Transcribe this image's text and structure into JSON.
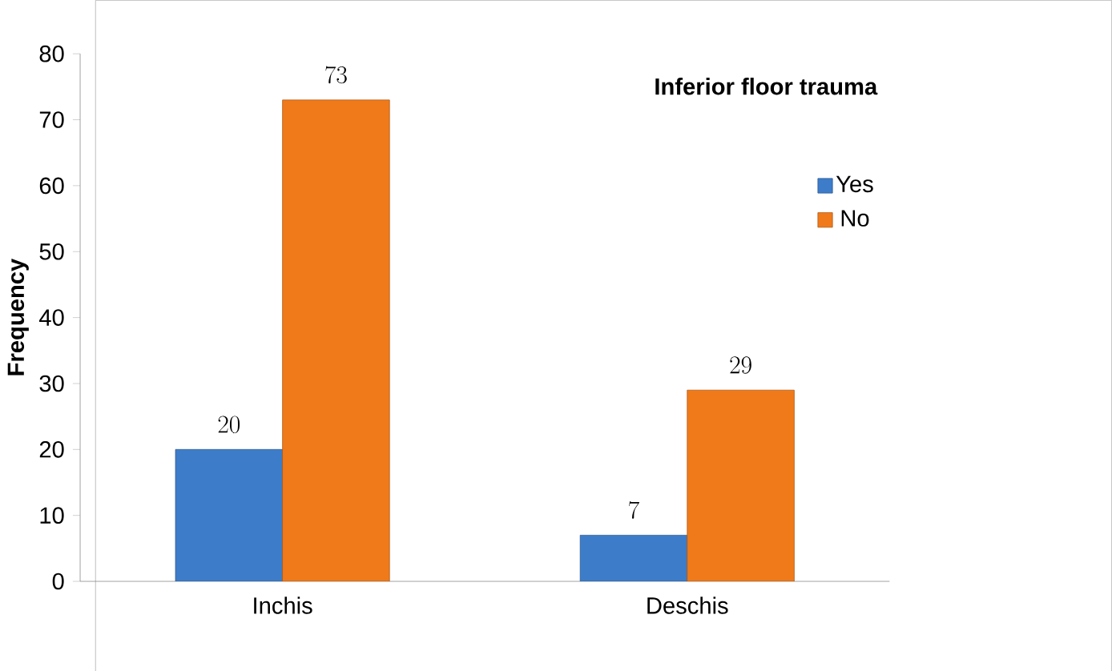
{
  "chart_data": {
    "type": "bar",
    "legend_title": "Inferior floor trauma",
    "ylabel": "Frequency",
    "categories": [
      "Inchis",
      "Deschis"
    ],
    "series": [
      {
        "name": "Yes",
        "color": "#3d7cc9",
        "values": [
          20,
          7
        ]
      },
      {
        "name": "No",
        "color": "#f07a1a",
        "values": [
          73,
          29
        ]
      }
    ],
    "ylim": [
      0,
      80
    ],
    "yticks": [
      0,
      10,
      20,
      30,
      40,
      50,
      60,
      70,
      80
    ],
    "data_labels": true,
    "legend": "right",
    "grid": false
  }
}
